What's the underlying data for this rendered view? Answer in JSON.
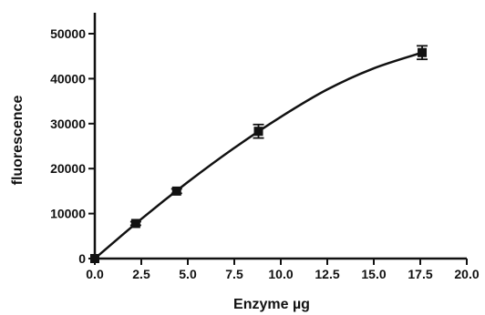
{
  "chart_data": {
    "type": "scatter",
    "title": "",
    "xlabel": "Enzyme µg",
    "ylabel": "fluorescence",
    "xlim": [
      0,
      20
    ],
    "ylim": [
      0,
      50000
    ],
    "x_ticks": [
      0,
      2.5,
      5,
      7.5,
      10,
      12.5,
      15,
      17.5,
      20
    ],
    "x_tick_labels": [
      "0.0",
      "2.5",
      "5.0",
      "7.5",
      "10.0",
      "12.5",
      "15.0",
      "17.5",
      "20.0"
    ],
    "y_ticks": [
      0,
      10000,
      20000,
      30000,
      40000,
      50000
    ],
    "y_tick_labels": [
      "0",
      "10000",
      "20000",
      "30000",
      "40000",
      "50000"
    ],
    "grid": false,
    "legend": "none",
    "series": [
      {
        "x": [
          0,
          2.2,
          4.4,
          8.8,
          17.6
        ],
        "y": [
          0,
          7800,
          15000,
          28300,
          45800
        ],
        "error": [
          0,
          400,
          500,
          1500,
          1500
        ],
        "marker": "square"
      }
    ],
    "fit_curve": {
      "x": [
        0,
        2.5,
        5,
        7.5,
        10,
        12.5,
        15,
        17.6
      ],
      "y": [
        0,
        8800,
        17000,
        24600,
        31500,
        37600,
        42300,
        45800
      ]
    },
    "colors": {
      "marks": "#111111",
      "background": "#ffffff"
    }
  }
}
